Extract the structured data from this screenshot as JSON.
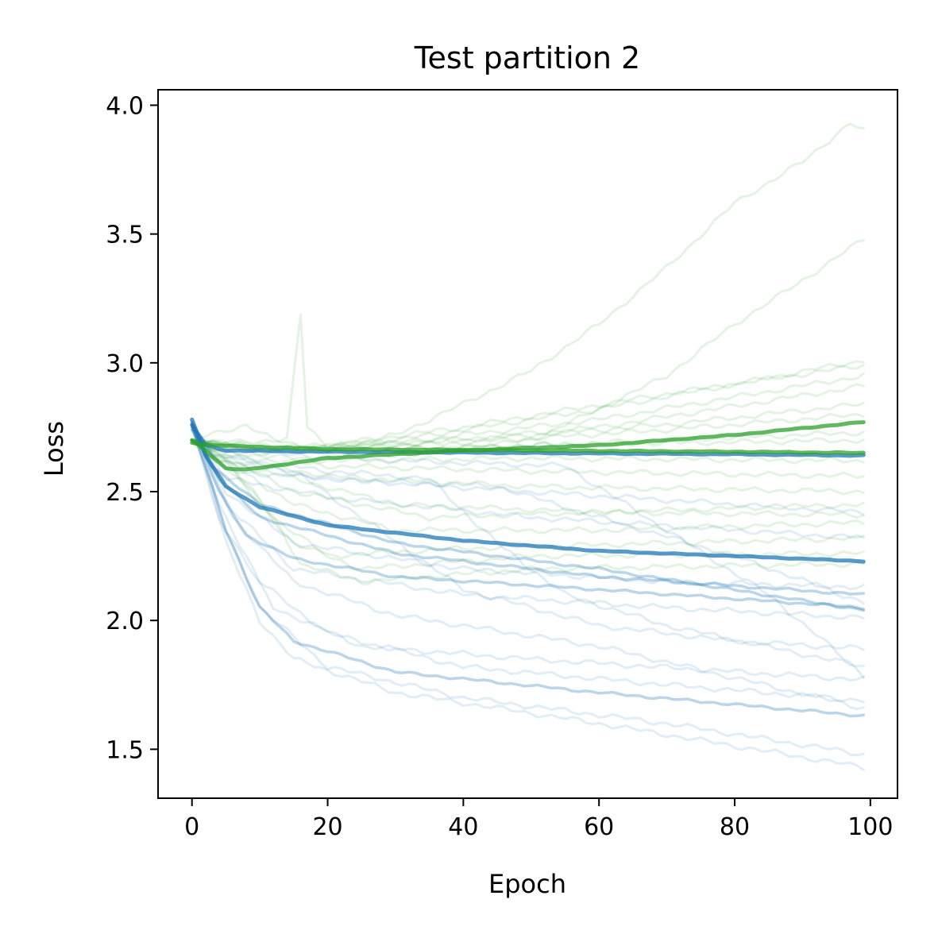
{
  "chart_data": {
    "type": "line",
    "title": "Test partition 2",
    "xlabel": "Epoch",
    "ylabel": "Loss",
    "xlim": [
      -5,
      104
    ],
    "ylim": [
      1.31,
      4.06
    ],
    "xticks": [
      0,
      20,
      40,
      60,
      80,
      100
    ],
    "yticks": [
      1.5,
      2.0,
      2.5,
      3.0,
      3.5,
      4.0
    ],
    "xtick_labels": [
      "0",
      "20",
      "40",
      "60",
      "80",
      "100"
    ],
    "ytick_labels": [
      "1.5",
      "2.0",
      "2.5",
      "3.0",
      "3.5",
      "4.0"
    ],
    "grid": false,
    "colors": {
      "blue": "#1f77b4",
      "green": "#2ca02c"
    },
    "epochs": 100,
    "series": [
      {
        "color": "blue",
        "emphasis": "bold",
        "points": [
          [
            0,
            2.78
          ],
          [
            2,
            2.64
          ],
          [
            5,
            2.52
          ],
          [
            10,
            2.44
          ],
          [
            20,
            2.37
          ],
          [
            40,
            2.31
          ],
          [
            60,
            2.27
          ],
          [
            80,
            2.25
          ],
          [
            99,
            2.23
          ]
        ]
      },
      {
        "color": "blue",
        "emphasis": "bold",
        "points": [
          [
            0,
            2.76
          ],
          [
            2,
            2.68
          ],
          [
            5,
            2.66
          ],
          [
            20,
            2.655
          ],
          [
            50,
            2.65
          ],
          [
            80,
            2.645
          ],
          [
            99,
            2.64
          ]
        ]
      },
      {
        "color": "green",
        "emphasis": "bold",
        "points": [
          [
            0,
            2.7
          ],
          [
            2,
            2.66
          ],
          [
            5,
            2.59
          ],
          [
            8,
            2.585
          ],
          [
            12,
            2.6
          ],
          [
            20,
            2.63
          ],
          [
            40,
            2.66
          ],
          [
            60,
            2.68
          ],
          [
            80,
            2.72
          ],
          [
            99,
            2.77
          ]
        ]
      },
      {
        "color": "green",
        "emphasis": "bold",
        "points": [
          [
            0,
            2.69
          ],
          [
            3,
            2.68
          ],
          [
            20,
            2.665
          ],
          [
            50,
            2.66
          ],
          [
            80,
            2.655
          ],
          [
            99,
            2.65
          ]
        ]
      },
      {
        "color": "blue",
        "emphasis": "medium",
        "points": [
          [
            0,
            2.77
          ],
          [
            4,
            2.5
          ],
          [
            8,
            2.33
          ],
          [
            15,
            2.24
          ],
          [
            30,
            2.17
          ],
          [
            60,
            2.12
          ],
          [
            99,
            2.05
          ]
        ]
      },
      {
        "color": "blue",
        "emphasis": "medium",
        "points": [
          [
            0,
            2.76
          ],
          [
            5,
            2.35
          ],
          [
            10,
            2.05
          ],
          [
            15,
            1.92
          ],
          [
            30,
            1.8
          ],
          [
            60,
            1.72
          ],
          [
            99,
            1.63
          ]
        ]
      },
      {
        "color": "blue",
        "emphasis": "medium",
        "points": [
          [
            0,
            2.75
          ],
          [
            3,
            2.6
          ],
          [
            10,
            2.45
          ],
          [
            30,
            2.3
          ],
          [
            60,
            2.2
          ],
          [
            99,
            2.04
          ]
        ]
      },
      {
        "color": "blue",
        "emphasis": "medium",
        "points": [
          [
            0,
            2.74
          ],
          [
            4,
            2.55
          ],
          [
            10,
            2.4
          ],
          [
            30,
            2.26
          ],
          [
            60,
            2.17
          ],
          [
            99,
            2.1
          ]
        ]
      },
      {
        "color": "blue",
        "emphasis": "faint",
        "points": [
          [
            0,
            2.76
          ],
          [
            5,
            2.3
          ],
          [
            10,
            2.0
          ],
          [
            15,
            1.85
          ],
          [
            30,
            1.72
          ],
          [
            60,
            1.6
          ],
          [
            99,
            1.43
          ]
        ]
      },
      {
        "color": "blue",
        "emphasis": "faint",
        "points": [
          [
            0,
            2.75
          ],
          [
            5,
            2.35
          ],
          [
            10,
            2.05
          ],
          [
            20,
            1.82
          ],
          [
            40,
            1.7
          ],
          [
            70,
            1.6
          ],
          [
            99,
            1.48
          ]
        ]
      },
      {
        "color": "blue",
        "emphasis": "faint",
        "points": [
          [
            0,
            2.76
          ],
          [
            4,
            2.45
          ],
          [
            10,
            2.15
          ],
          [
            20,
            1.95
          ],
          [
            40,
            1.82
          ],
          [
            70,
            1.75
          ],
          [
            99,
            1.69
          ]
        ]
      },
      {
        "color": "blue",
        "emphasis": "faint",
        "points": [
          [
            0,
            2.77
          ],
          [
            4,
            2.4
          ],
          [
            12,
            2.05
          ],
          [
            25,
            1.9
          ],
          [
            50,
            1.85
          ],
          [
            99,
            1.77
          ]
        ]
      },
      {
        "color": "blue",
        "emphasis": "faint",
        "points": [
          [
            0,
            2.75
          ],
          [
            3,
            2.65
          ],
          [
            15,
            2.58
          ],
          [
            25,
            2.4
          ],
          [
            40,
            2.12
          ],
          [
            60,
            1.98
          ],
          [
            80,
            1.92
          ],
          [
            99,
            1.89
          ]
        ]
      },
      {
        "color": "blue",
        "emphasis": "faint",
        "points": [
          [
            0,
            2.76
          ],
          [
            3,
            2.64
          ],
          [
            20,
            2.58
          ],
          [
            35,
            2.55
          ],
          [
            45,
            2.3
          ],
          [
            55,
            2.1
          ],
          [
            70,
            1.98
          ],
          [
            99,
            1.82
          ]
        ]
      },
      {
        "color": "blue",
        "emphasis": "faint",
        "points": [
          [
            0,
            2.74
          ],
          [
            3,
            2.66
          ],
          [
            30,
            2.62
          ],
          [
            55,
            2.6
          ],
          [
            70,
            2.35
          ],
          [
            85,
            2.1
          ],
          [
            99,
            1.79
          ]
        ]
      },
      {
        "color": "blue",
        "emphasis": "faint",
        "points": [
          [
            0,
            2.76
          ],
          [
            5,
            2.5
          ],
          [
            15,
            2.3
          ],
          [
            40,
            2.2
          ],
          [
            70,
            2.15
          ],
          [
            99,
            2.13
          ]
        ]
      },
      {
        "color": "blue",
        "emphasis": "faint",
        "points": [
          [
            0,
            2.75
          ],
          [
            5,
            2.45
          ],
          [
            15,
            2.2
          ],
          [
            40,
            2.1
          ],
          [
            70,
            2.05
          ],
          [
            99,
            2.01
          ]
        ]
      },
      {
        "color": "blue",
        "emphasis": "faint",
        "points": [
          [
            0,
            2.74
          ],
          [
            5,
            2.55
          ],
          [
            20,
            2.48
          ],
          [
            50,
            2.4
          ],
          [
            99,
            2.32
          ]
        ]
      },
      {
        "color": "blue",
        "emphasis": "faint",
        "points": [
          [
            0,
            2.75
          ],
          [
            5,
            2.58
          ],
          [
            20,
            2.55
          ],
          [
            50,
            2.5
          ],
          [
            99,
            2.42
          ]
        ]
      },
      {
        "color": "blue",
        "emphasis": "faint",
        "points": [
          [
            0,
            2.76
          ],
          [
            6,
            2.4
          ],
          [
            15,
            2.15
          ],
          [
            30,
            2.02
          ],
          [
            60,
            1.9
          ],
          [
            99,
            1.66
          ]
        ]
      },
      {
        "color": "blue",
        "emphasis": "faint",
        "points": [
          [
            0,
            2.75
          ],
          [
            4,
            2.62
          ],
          [
            20,
            2.55
          ],
          [
            45,
            2.52
          ],
          [
            60,
            2.4
          ],
          [
            80,
            2.25
          ],
          [
            99,
            2.07
          ]
        ]
      },
      {
        "color": "green",
        "emphasis": "faint",
        "points": [
          [
            0,
            2.7
          ],
          [
            10,
            2.68
          ],
          [
            20,
            2.66
          ],
          [
            30,
            2.72
          ],
          [
            40,
            2.84
          ],
          [
            50,
            2.97
          ],
          [
            60,
            3.15
          ],
          [
            70,
            3.37
          ],
          [
            80,
            3.62
          ],
          [
            90,
            3.78
          ],
          [
            97,
            3.93
          ],
          [
            99,
            3.9
          ]
        ]
      },
      {
        "color": "green",
        "emphasis": "faint",
        "points": [
          [
            0,
            2.7
          ],
          [
            10,
            2.66
          ],
          [
            30,
            2.64
          ],
          [
            50,
            2.7
          ],
          [
            60,
            2.82
          ],
          [
            70,
            2.95
          ],
          [
            80,
            3.15
          ],
          [
            90,
            3.32
          ],
          [
            99,
            3.48
          ]
        ]
      },
      {
        "color": "green",
        "emphasis": "faint",
        "points": [
          [
            0,
            2.69
          ],
          [
            14,
            2.7
          ],
          [
            16,
            3.19
          ],
          [
            17,
            2.75
          ],
          [
            20,
            2.68
          ],
          [
            40,
            2.75
          ],
          [
            70,
            2.88
          ],
          [
            99,
            2.99
          ]
        ]
      },
      {
        "color": "green",
        "emphasis": "faint",
        "points": [
          [
            0,
            2.7
          ],
          [
            10,
            2.66
          ],
          [
            30,
            2.7
          ],
          [
            60,
            2.82
          ],
          [
            99,
            3.01
          ]
        ]
      },
      {
        "color": "green",
        "emphasis": "faint",
        "points": [
          [
            0,
            2.7
          ],
          [
            10,
            2.66
          ],
          [
            30,
            2.69
          ],
          [
            60,
            2.78
          ],
          [
            99,
            2.95
          ]
        ]
      },
      {
        "color": "green",
        "emphasis": "faint",
        "points": [
          [
            0,
            2.7
          ],
          [
            10,
            2.66
          ],
          [
            30,
            2.68
          ],
          [
            60,
            2.75
          ],
          [
            99,
            2.91
          ]
        ]
      },
      {
        "color": "green",
        "emphasis": "faint",
        "points": [
          [
            0,
            2.7
          ],
          [
            10,
            2.67
          ],
          [
            40,
            2.7
          ],
          [
            70,
            2.76
          ],
          [
            99,
            2.84
          ]
        ]
      },
      {
        "color": "green",
        "emphasis": "faint",
        "points": [
          [
            0,
            2.7
          ],
          [
            10,
            2.66
          ],
          [
            40,
            2.69
          ],
          [
            70,
            2.74
          ],
          [
            99,
            2.8
          ]
        ]
      },
      {
        "color": "green",
        "emphasis": "faint",
        "points": [
          [
            0,
            2.7
          ],
          [
            10,
            2.66
          ],
          [
            40,
            2.67
          ],
          [
            70,
            2.7
          ],
          [
            99,
            2.73
          ]
        ]
      },
      {
        "color": "green",
        "emphasis": "faint",
        "points": [
          [
            0,
            2.7
          ],
          [
            6,
            2.6
          ],
          [
            12,
            2.4
          ],
          [
            16,
            2.22
          ],
          [
            25,
            2.15
          ],
          [
            50,
            2.2
          ],
          [
            99,
            2.22
          ]
        ]
      },
      {
        "color": "green",
        "emphasis": "faint",
        "points": [
          [
            0,
            2.69
          ],
          [
            5,
            2.6
          ],
          [
            10,
            2.45
          ],
          [
            15,
            2.3
          ],
          [
            25,
            2.2
          ],
          [
            50,
            2.25
          ],
          [
            99,
            2.26
          ]
        ]
      },
      {
        "color": "green",
        "emphasis": "faint",
        "points": [
          [
            0,
            2.7
          ],
          [
            5,
            2.62
          ],
          [
            15,
            2.45
          ],
          [
            30,
            2.35
          ],
          [
            60,
            2.35
          ],
          [
            99,
            2.38
          ]
        ]
      },
      {
        "color": "green",
        "emphasis": "faint",
        "points": [
          [
            0,
            2.7
          ],
          [
            5,
            2.62
          ],
          [
            15,
            2.55
          ],
          [
            30,
            2.45
          ],
          [
            60,
            2.42
          ],
          [
            99,
            2.41
          ]
        ]
      },
      {
        "color": "green",
        "emphasis": "faint",
        "points": [
          [
            0,
            2.7
          ],
          [
            5,
            2.63
          ],
          [
            20,
            2.56
          ],
          [
            50,
            2.52
          ],
          [
            99,
            2.5
          ]
        ]
      },
      {
        "color": "green",
        "emphasis": "faint",
        "points": [
          [
            0,
            2.7
          ],
          [
            6,
            2.62
          ],
          [
            15,
            2.5
          ],
          [
            35,
            2.4
          ],
          [
            60,
            2.42
          ],
          [
            99,
            2.45
          ]
        ]
      },
      {
        "color": "green",
        "emphasis": "faint",
        "points": [
          [
            0,
            2.7
          ],
          [
            5,
            2.61
          ],
          [
            12,
            2.4
          ],
          [
            20,
            2.25
          ],
          [
            40,
            2.28
          ],
          [
            70,
            2.3
          ],
          [
            99,
            2.32
          ]
        ]
      },
      {
        "color": "green",
        "emphasis": "faint",
        "points": [
          [
            0,
            2.7
          ],
          [
            5,
            2.64
          ],
          [
            20,
            2.6
          ],
          [
            50,
            2.58
          ],
          [
            99,
            2.56
          ]
        ]
      },
      {
        "color": "green",
        "emphasis": "faint",
        "points": [
          [
            0,
            2.7
          ],
          [
            5,
            2.65
          ],
          [
            20,
            2.62
          ],
          [
            50,
            2.63
          ],
          [
            99,
            2.62
          ]
        ]
      },
      {
        "color": "green",
        "emphasis": "faint",
        "points": [
          [
            0,
            2.7
          ],
          [
            8,
            2.76
          ],
          [
            12,
            2.7
          ],
          [
            20,
            2.66
          ],
          [
            50,
            2.68
          ],
          [
            99,
            2.7
          ]
        ]
      }
    ]
  }
}
